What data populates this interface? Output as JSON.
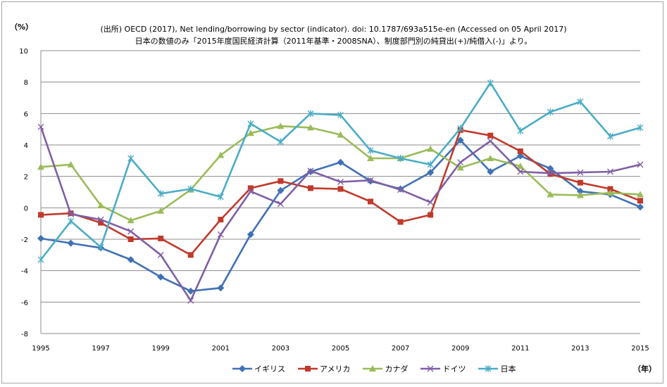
{
  "notes": {
    "source": "(出所) OECD (2017), Net lending/borrowing by sector (indicator). doi: 10.1787/693a515e-en (Accessed on 05 April 2017)",
    "japan_source": "日本の数値のみ「2015年度国民経済計算（2011年基準・2008SNA）、制度部門別の純貸出(+)/純借入(-)」より。"
  },
  "chart_data": {
    "type": "line",
    "ylabel": "（%）",
    "xlabel": "（年）",
    "ylim": [
      -8,
      10
    ],
    "yticks": [
      -8,
      -6,
      -4,
      -2,
      0,
      2,
      4,
      6,
      8,
      10
    ],
    "x": [
      1995,
      1996,
      1997,
      1998,
      1999,
      2000,
      2001,
      2002,
      2003,
      2004,
      2005,
      2006,
      2007,
      2008,
      2009,
      2010,
      2011,
      2012,
      2013,
      2014,
      2015
    ],
    "xtick_labels": [
      "1995",
      "1997",
      "1999",
      "2001",
      "2003",
      "2005",
      "2007",
      "2009",
      "2011",
      "2013",
      "2015"
    ],
    "grid": true,
    "legend_position": "bottom",
    "series": [
      {
        "name": "イギリス",
        "color": "#3f71b5",
        "marker": "diamond",
        "values": [
          -1.95,
          -2.25,
          -2.55,
          -3.3,
          -4.4,
          -5.3,
          -5.1,
          -1.7,
          1.1,
          2.3,
          2.9,
          1.7,
          1.2,
          2.25,
          4.3,
          2.3,
          3.3,
          2.5,
          1.05,
          0.85,
          0.05
        ]
      },
      {
        "name": "アメリカ",
        "color": "#c0392b",
        "marker": "square",
        "values": [
          -0.45,
          -0.35,
          -0.95,
          -2.0,
          -1.95,
          -3.0,
          -0.75,
          1.25,
          1.7,
          1.25,
          1.2,
          0.4,
          -0.9,
          -0.45,
          4.95,
          4.6,
          3.6,
          2.15,
          1.6,
          1.2,
          0.45
        ]
      },
      {
        "name": "カナダ",
        "color": "#9bbb59",
        "marker": "triangle",
        "values": [
          2.6,
          2.75,
          0.15,
          -0.8,
          -0.2,
          1.15,
          3.35,
          4.75,
          5.2,
          5.1,
          4.65,
          3.15,
          3.15,
          3.75,
          2.55,
          3.15,
          2.65,
          0.85,
          0.8,
          0.95,
          0.85
        ]
      },
      {
        "name": "ドイツ",
        "color": "#7f5fa5",
        "marker": "x",
        "values": [
          5.15,
          -0.4,
          -0.75,
          -1.5,
          -3.0,
          -5.9,
          -1.7,
          1.05,
          0.25,
          2.35,
          1.65,
          1.75,
          1.15,
          0.35,
          2.9,
          4.25,
          2.3,
          2.2,
          2.25,
          2.3,
          2.75
        ]
      },
      {
        "name": "日本",
        "color": "#4bacc6",
        "marker": "star",
        "values": [
          -3.3,
          -0.85,
          -2.5,
          3.15,
          0.9,
          1.2,
          0.7,
          5.35,
          4.2,
          6.0,
          5.9,
          3.65,
          3.15,
          2.75,
          5.05,
          7.95,
          4.9,
          6.1,
          6.75,
          4.55,
          5.1
        ]
      }
    ]
  }
}
